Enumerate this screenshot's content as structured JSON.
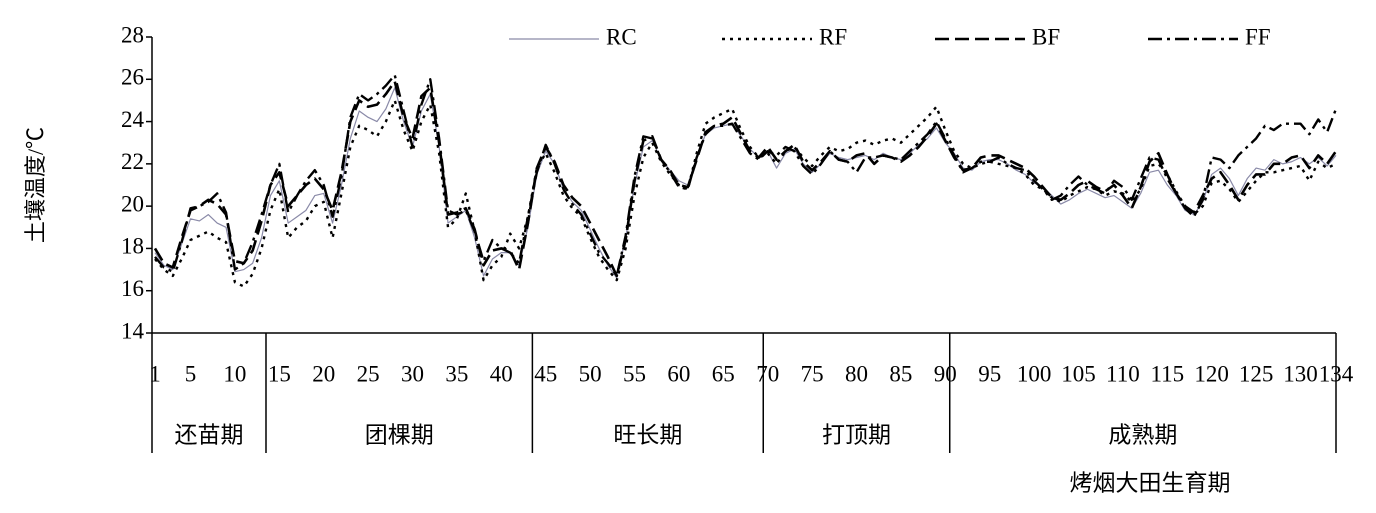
{
  "chart_data": {
    "type": "line",
    "y_label": "土壤温度/℃",
    "x_label": "烤烟大田生育期",
    "x": [
      1,
      2,
      3,
      4,
      5,
      6,
      7,
      8,
      9,
      10,
      11,
      12,
      13,
      14,
      15,
      16,
      17,
      18,
      19,
      20,
      21,
      22,
      23,
      24,
      25,
      26,
      27,
      28,
      29,
      30,
      31,
      32,
      33,
      34,
      35,
      36,
      37,
      38,
      39,
      40,
      41,
      42,
      43,
      44,
      45,
      46,
      47,
      48,
      49,
      50,
      51,
      52,
      53,
      54,
      55,
      56,
      57,
      58,
      59,
      60,
      61,
      62,
      63,
      64,
      65,
      66,
      67,
      68,
      69,
      70,
      71,
      72,
      73,
      74,
      75,
      76,
      77,
      78,
      79,
      80,
      81,
      82,
      83,
      84,
      85,
      86,
      87,
      88,
      89,
      90,
      91,
      92,
      93,
      94,
      95,
      96,
      97,
      98,
      99,
      100,
      101,
      102,
      103,
      104,
      105,
      106,
      107,
      108,
      109,
      110,
      111,
      112,
      113,
      114,
      115,
      116,
      117,
      118,
      119,
      120,
      121,
      122,
      123,
      124,
      125,
      126,
      127,
      128,
      129,
      130,
      131,
      132,
      133,
      134
    ],
    "xlim": [
      1,
      134
    ],
    "xticks": [
      1,
      5,
      10,
      15,
      20,
      25,
      30,
      35,
      40,
      45,
      50,
      55,
      60,
      65,
      70,
      75,
      80,
      85,
      90,
      95,
      100,
      105,
      110,
      115,
      120,
      125,
      130,
      134
    ],
    "ylim": [
      14,
      28
    ],
    "yticks": [
      14,
      16,
      18,
      20,
      22,
      24,
      26,
      28
    ],
    "legend": "top-right",
    "stages": [
      {
        "label": "还苗期",
        "start": 1,
        "end": 13
      },
      {
        "label": "团棵期",
        "start": 14,
        "end": 43
      },
      {
        "label": "旺长期",
        "start": 44,
        "end": 69
      },
      {
        "label": "打顶期",
        "start": 70,
        "end": 90
      },
      {
        "label": "成熟期",
        "start": 91,
        "end": 134
      }
    ],
    "series": [
      {
        "name": "RC",
        "color": "#8a8aa8",
        "dash": "solid",
        "values": [
          17.8,
          17.2,
          17.0,
          18.2,
          19.4,
          19.3,
          19.6,
          19.2,
          19.0,
          16.9,
          17.0,
          17.3,
          18.5,
          20.5,
          21.2,
          19.2,
          19.5,
          19.8,
          20.5,
          20.6,
          19.2,
          21.0,
          23.2,
          24.5,
          24.2,
          24.0,
          24.6,
          25.6,
          24.0,
          22.8,
          24.5,
          25.3,
          22.8,
          19.2,
          19.5,
          19.8,
          18.5,
          16.7,
          17.5,
          17.8,
          17.8,
          17.2,
          19.0,
          21.5,
          22.6,
          22.0,
          20.8,
          20.2,
          19.8,
          18.9,
          18.0,
          17.2,
          16.6,
          18.5,
          21.0,
          22.8,
          23.1,
          22.2,
          21.7,
          21.2,
          21.0,
          22.3,
          23.4,
          23.7,
          23.8,
          23.9,
          23.3,
          22.7,
          22.3,
          22.6,
          21.8,
          22.5,
          22.7,
          22.0,
          21.6,
          22.0,
          22.5,
          22.3,
          22.2,
          22.3,
          22.4,
          22.2,
          22.5,
          22.3,
          22.2,
          22.5,
          22.9,
          23.2,
          23.7,
          23.0,
          22.5,
          21.8,
          21.7,
          22.1,
          22.2,
          22.2,
          22.0,
          21.7,
          21.5,
          21.1,
          20.9,
          20.5,
          20.1,
          20.3,
          20.6,
          20.8,
          20.6,
          20.4,
          20.5,
          20.2,
          19.9,
          20.6,
          21.6,
          21.7,
          21.0,
          20.5,
          19.8,
          19.6,
          20.2,
          21.5,
          21.8,
          21.3,
          20.5,
          21.3,
          21.8,
          21.7,
          22.2,
          22.0,
          22.1,
          22.3,
          22.0,
          22.3,
          21.9,
          22.4
        ]
      },
      {
        "name": "RF",
        "color": "#000000",
        "dash": "dot",
        "values": [
          17.5,
          17.0,
          16.7,
          17.5,
          18.4,
          18.6,
          18.8,
          18.5,
          18.3,
          16.4,
          16.2,
          16.8,
          18.0,
          19.8,
          20.8,
          18.5,
          19.0,
          19.3,
          20.0,
          20.2,
          18.5,
          20.6,
          22.8,
          23.8,
          23.6,
          23.3,
          24.0,
          25.0,
          23.6,
          22.6,
          24.0,
          24.8,
          22.5,
          19.0,
          19.4,
          20.6,
          18.8,
          16.5,
          17.2,
          17.6,
          18.7,
          18.0,
          19.5,
          21.8,
          22.5,
          21.6,
          20.5,
          19.9,
          19.5,
          18.5,
          17.6,
          17.0,
          16.5,
          18.0,
          20.5,
          22.3,
          23.0,
          22.1,
          21.5,
          21.0,
          20.8,
          22.5,
          23.9,
          24.2,
          24.4,
          24.6,
          23.6,
          22.8,
          22.3,
          22.5,
          22.0,
          22.6,
          22.8,
          22.3,
          21.9,
          22.4,
          22.8,
          22.6,
          22.7,
          23.0,
          23.1,
          22.9,
          23.1,
          23.2,
          23.0,
          23.4,
          23.8,
          24.2,
          24.7,
          23.6,
          22.6,
          22.0,
          21.8,
          22.0,
          22.1,
          22.0,
          21.9,
          21.8,
          21.5,
          21.0,
          20.8,
          20.4,
          20.2,
          20.5,
          20.7,
          20.9,
          20.8,
          20.5,
          20.7,
          20.6,
          20.2,
          20.8,
          21.9,
          22.0,
          21.5,
          20.7,
          20.0,
          19.6,
          20.0,
          21.1,
          21.2,
          20.8,
          20.2,
          20.7,
          21.2,
          21.6,
          21.6,
          21.7,
          21.8,
          21.9,
          21.2,
          22.1,
          21.8,
          22.0
        ]
      },
      {
        "name": "BF",
        "color": "#000000",
        "dash": "dash",
        "values": [
          18.0,
          17.3,
          17.1,
          18.5,
          19.8,
          20.0,
          20.3,
          20.1,
          19.6,
          17.4,
          17.3,
          17.9,
          19.3,
          21.0,
          21.6,
          20.0,
          20.5,
          21.0,
          21.3,
          20.8,
          19.8,
          21.6,
          24.0,
          25.0,
          24.7,
          24.8,
          25.3,
          25.9,
          24.2,
          23.2,
          25.2,
          25.6,
          23.0,
          19.6,
          19.7,
          19.9,
          18.9,
          17.2,
          17.9,
          18.0,
          17.9,
          17.0,
          19.2,
          21.8,
          22.8,
          22.1,
          21.0,
          20.4,
          20.0,
          19.2,
          18.4,
          17.6,
          16.7,
          18.4,
          21.2,
          23.1,
          23.3,
          22.2,
          21.7,
          21.0,
          20.9,
          22.2,
          23.5,
          23.8,
          23.9,
          24.2,
          23.4,
          22.6,
          22.3,
          22.8,
          22.2,
          22.6,
          22.9,
          22.1,
          21.7,
          22.1,
          22.6,
          22.2,
          22.1,
          22.4,
          22.5,
          22.0,
          22.4,
          22.3,
          22.1,
          22.4,
          22.8,
          23.3,
          23.9,
          23.1,
          22.3,
          21.7,
          21.8,
          22.3,
          22.4,
          22.4,
          22.2,
          22.0,
          21.8,
          21.4,
          20.9,
          20.4,
          20.3,
          20.6,
          21.0,
          21.2,
          20.9,
          20.7,
          21.0,
          20.5,
          19.9,
          20.9,
          22.1,
          22.5,
          21.5,
          20.6,
          20.0,
          19.7,
          20.5,
          21.3,
          21.6,
          21.0,
          20.3,
          21.0,
          21.5,
          21.5,
          22.0,
          22.0,
          22.3,
          22.4,
          21.8,
          22.4,
          22.0,
          22.6
        ]
      },
      {
        "name": "FF",
        "color": "#000000",
        "dash": "dashdot",
        "values": [
          17.6,
          17.1,
          16.9,
          18.3,
          19.9,
          20.0,
          20.2,
          20.6,
          19.7,
          17.0,
          17.3,
          18.3,
          19.6,
          21.0,
          22.0,
          19.7,
          20.5,
          21.2,
          21.7,
          21.0,
          19.5,
          21.4,
          24.2,
          25.3,
          25.0,
          25.3,
          25.7,
          26.2,
          24.5,
          22.8,
          24.8,
          26.0,
          23.2,
          19.8,
          19.6,
          19.8,
          18.8,
          17.4,
          18.4,
          18.0,
          17.8,
          17.3,
          19.5,
          21.6,
          22.9,
          22.0,
          20.8,
          20.1,
          19.6,
          18.7,
          17.8,
          17.3,
          16.7,
          18.6,
          21.4,
          23.3,
          23.2,
          22.2,
          21.6,
          20.9,
          20.8,
          22.3,
          23.4,
          23.8,
          23.8,
          23.9,
          23.2,
          22.5,
          22.2,
          22.6,
          22.4,
          22.8,
          22.6,
          21.9,
          21.5,
          22.0,
          22.6,
          22.2,
          22.1,
          21.6,
          22.3,
          22.3,
          22.4,
          22.3,
          22.2,
          22.6,
          23.0,
          23.4,
          24.0,
          23.2,
          22.4,
          21.6,
          21.8,
          22.1,
          22.1,
          22.3,
          22.0,
          21.8,
          21.7,
          21.2,
          20.8,
          20.3,
          20.5,
          21.0,
          21.4,
          21.0,
          20.8,
          20.6,
          21.2,
          20.9,
          20.3,
          21.3,
          22.3,
          22.2,
          21.3,
          20.6,
          19.9,
          19.5,
          20.3,
          22.3,
          22.2,
          21.8,
          22.4,
          22.8,
          23.2,
          23.8,
          23.6,
          23.9,
          23.9,
          23.9,
          23.4,
          24.1,
          23.5,
          24.6
        ]
      }
    ]
  }
}
